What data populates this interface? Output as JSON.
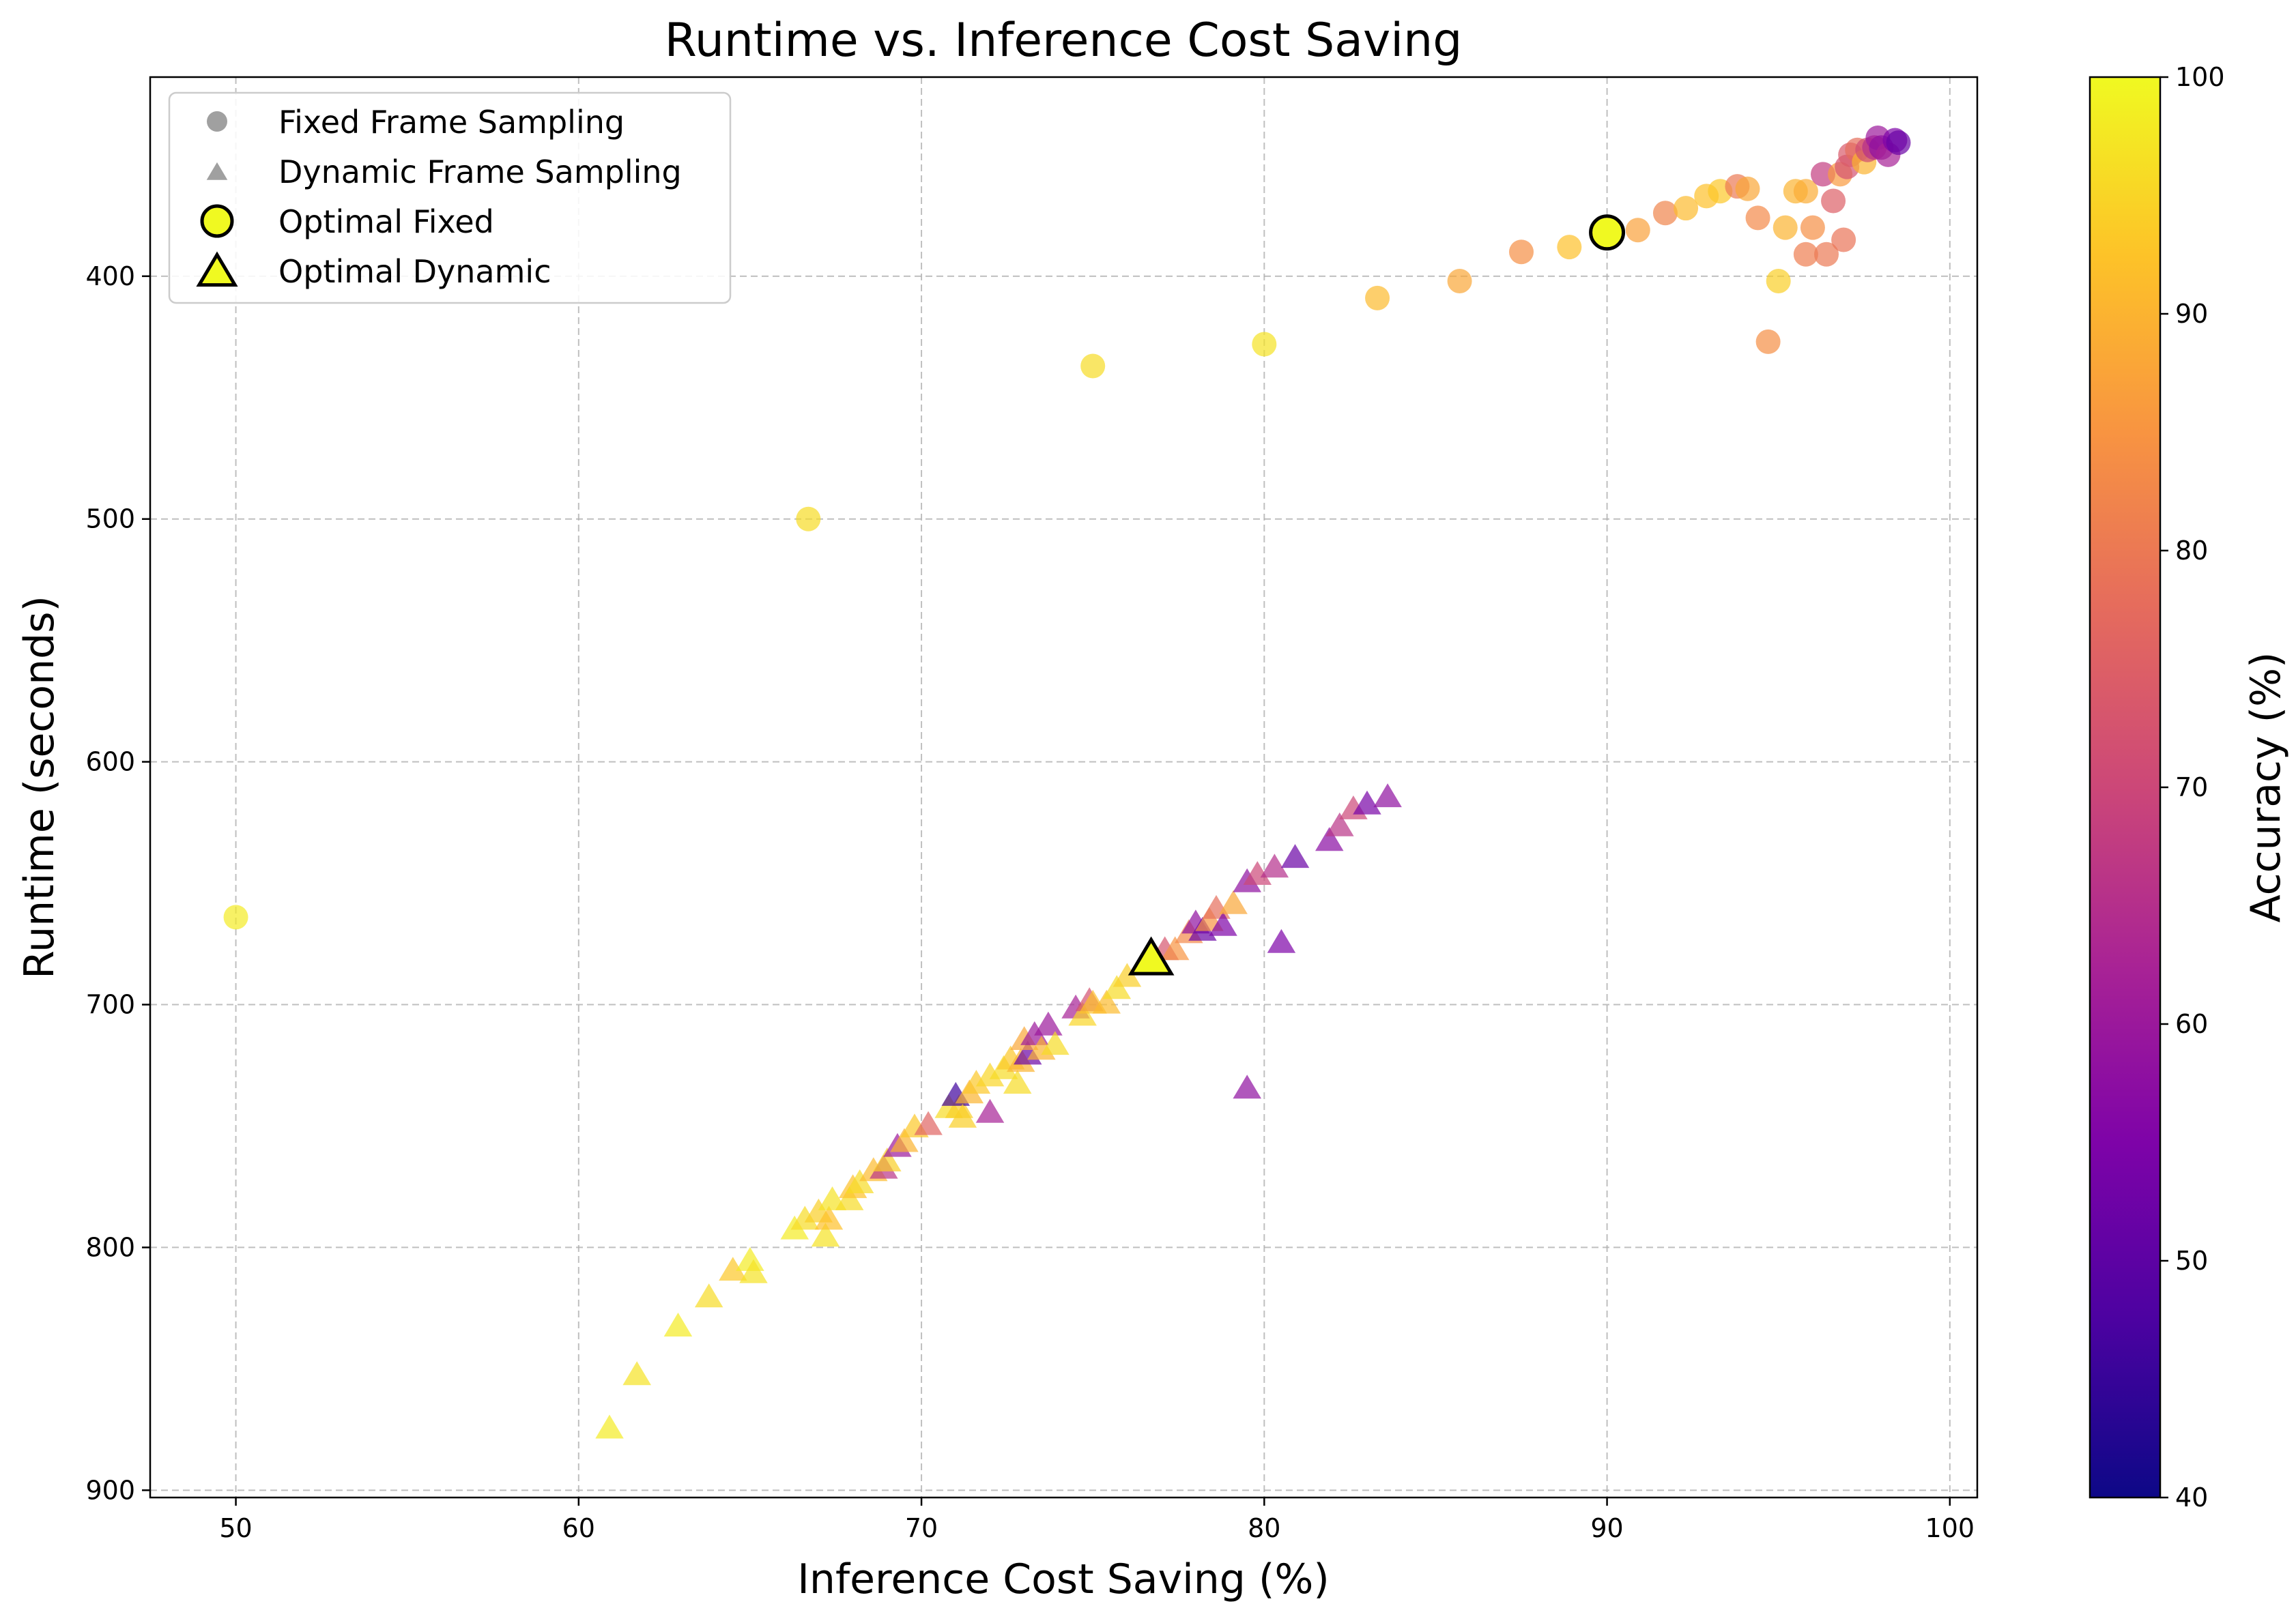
{
  "chart_data": {
    "type": "scatter",
    "title": "Runtime vs. Inference Cost Saving",
    "xlabel": "Inference Cost Saving (%)",
    "ylabel": "Runtime (seconds)",
    "xlim": [
      47.5,
      100.8
    ],
    "ylim": [
      903,
      318
    ],
    "y_inverted": true,
    "xticks": [
      50,
      60,
      70,
      80,
      90,
      100
    ],
    "yticks": [
      400,
      500,
      600,
      700,
      800,
      900
    ],
    "grid": true,
    "legend_position": "upper-left",
    "legend": [
      {
        "label": "Fixed Frame Sampling",
        "marker": "circle",
        "color": "#a0a0a0"
      },
      {
        "label": "Dynamic Frame Sampling",
        "marker": "triangle",
        "color": "#a0a0a0"
      },
      {
        "label": "Optimal Fixed",
        "marker": "circle",
        "color": "#f0f921",
        "edge": "#000000"
      },
      {
        "label": "Optimal Dynamic",
        "marker": "triangle",
        "color": "#f0f921",
        "edge": "#000000"
      }
    ],
    "colorbar": {
      "label": "Accuracy (%)",
      "colormap": "plasma",
      "range": [
        40,
        100
      ],
      "ticks": [
        40,
        50,
        60,
        70,
        80,
        90,
        100
      ]
    },
    "series": [
      {
        "name": "Fixed Frame Sampling",
        "marker": "circle",
        "points": [
          [
            50.0,
            664,
            98
          ],
          [
            66.7,
            500,
            96
          ],
          [
            75.0,
            437,
            96
          ],
          [
            80.0,
            428,
            97
          ],
          [
            83.3,
            409,
            91
          ],
          [
            85.7,
            402,
            88
          ],
          [
            87.5,
            390,
            84
          ],
          [
            88.9,
            388,
            92
          ],
          [
            90.9,
            381,
            87
          ],
          [
            91.7,
            374,
            82
          ],
          [
            92.3,
            372,
            91
          ],
          [
            92.9,
            367,
            92
          ],
          [
            93.3,
            365,
            93
          ],
          [
            93.8,
            363,
            80
          ],
          [
            94.1,
            364,
            88
          ],
          [
            94.4,
            376,
            83
          ],
          [
            94.7,
            427,
            84
          ],
          [
            95.0,
            402,
            94
          ],
          [
            95.2,
            380,
            90
          ],
          [
            95.5,
            365,
            90
          ],
          [
            95.8,
            365,
            89
          ],
          [
            95.8,
            391,
            81
          ],
          [
            96.0,
            380,
            84
          ],
          [
            96.3,
            358,
            68
          ],
          [
            96.4,
            391,
            80
          ],
          [
            96.6,
            369,
            75
          ],
          [
            96.8,
            358,
            86
          ],
          [
            96.9,
            385,
            79
          ],
          [
            97.0,
            355,
            72
          ],
          [
            97.1,
            350,
            74
          ],
          [
            97.3,
            348,
            78
          ],
          [
            97.5,
            353,
            90
          ],
          [
            97.6,
            348,
            71
          ],
          [
            97.8,
            347,
            65
          ],
          [
            97.9,
            343,
            60
          ],
          [
            98.0,
            347,
            58
          ],
          [
            98.2,
            350,
            62
          ],
          [
            98.4,
            344,
            55
          ],
          [
            98.5,
            345,
            52
          ]
        ]
      },
      {
        "name": "Dynamic Frame Sampling",
        "marker": "triangle",
        "points": [
          [
            60.9,
            875,
            98
          ],
          [
            61.7,
            853,
            97
          ],
          [
            62.9,
            833,
            98
          ],
          [
            63.8,
            821,
            96
          ],
          [
            64.5,
            810,
            93
          ],
          [
            65.0,
            806,
            98
          ],
          [
            65.1,
            811,
            97
          ],
          [
            66.3,
            793,
            98
          ],
          [
            66.6,
            789,
            96
          ],
          [
            67.0,
            786,
            94
          ],
          [
            67.2,
            796,
            97
          ],
          [
            67.3,
            789,
            92
          ],
          [
            67.4,
            781,
            97
          ],
          [
            67.9,
            781,
            96
          ],
          [
            68.0,
            776,
            92
          ],
          [
            68.2,
            774,
            96
          ],
          [
            68.6,
            769,
            91
          ],
          [
            68.9,
            768,
            66
          ],
          [
            69.0,
            765,
            94
          ],
          [
            69.3,
            759,
            60
          ],
          [
            69.5,
            757,
            90
          ],
          [
            69.8,
            751,
            93
          ],
          [
            70.2,
            750,
            76
          ],
          [
            70.8,
            743,
            96
          ],
          [
            71.1,
            743,
            94
          ],
          [
            71.0,
            738,
            46
          ],
          [
            71.2,
            747,
            94
          ],
          [
            71.4,
            737,
            90
          ],
          [
            71.6,
            733,
            93
          ],
          [
            72.0,
            730,
            95
          ],
          [
            72.0,
            745,
            62
          ],
          [
            72.4,
            727,
            96
          ],
          [
            72.6,
            723,
            93
          ],
          [
            72.8,
            733,
            96
          ],
          [
            72.9,
            724,
            90
          ],
          [
            73.1,
            721,
            52
          ],
          [
            73.0,
            715,
            88
          ],
          [
            73.3,
            713,
            60
          ],
          [
            73.5,
            719,
            90
          ],
          [
            73.7,
            709,
            60
          ],
          [
            73.9,
            717,
            96
          ],
          [
            74.5,
            702,
            62
          ],
          [
            74.7,
            705,
            95
          ],
          [
            74.9,
            699,
            72
          ],
          [
            75.0,
            700,
            92
          ],
          [
            75.4,
            700,
            91
          ],
          [
            75.7,
            694,
            96
          ],
          [
            76.0,
            689,
            94
          ],
          [
            76.5,
            683,
            89
          ],
          [
            77.1,
            678,
            73
          ],
          [
            77.4,
            678,
            85
          ],
          [
            77.8,
            671,
            83
          ],
          [
            78.0,
            667,
            58
          ],
          [
            78.2,
            670,
            52
          ],
          [
            78.4,
            666,
            85
          ],
          [
            78.6,
            661,
            78
          ],
          [
            78.8,
            668,
            55
          ],
          [
            79.1,
            659,
            88
          ],
          [
            79.5,
            650,
            58
          ],
          [
            79.8,
            647,
            70
          ],
          [
            80.3,
            644,
            65
          ],
          [
            80.5,
            675,
            55
          ],
          [
            80.9,
            640,
            52
          ],
          [
            81.9,
            633,
            57
          ],
          [
            82.2,
            627,
            66
          ],
          [
            82.6,
            620,
            70
          ],
          [
            83.0,
            618,
            54
          ],
          [
            83.6,
            615,
            58
          ],
          [
            79.5,
            735,
            58
          ]
        ]
      }
    ],
    "optimal_points": [
      {
        "name": "Optimal Fixed",
        "marker": "circle",
        "x": 90.0,
        "y": 382,
        "accuracy": 100
      },
      {
        "name": "Optimal Dynamic",
        "marker": "triangle",
        "x": 76.7,
        "y": 682,
        "accuracy": 100
      }
    ]
  }
}
